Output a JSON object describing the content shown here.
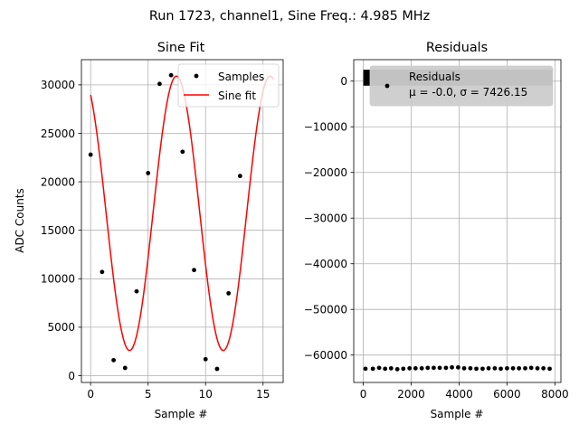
{
  "suptitle": "Run 1723, channel1, Sine Freq.: 4.985 MHz",
  "chart_data": [
    {
      "type": "scatter",
      "title": "Sine Fit",
      "xlabel": "Sample #",
      "ylabel": "ADC Counts",
      "xlim": [
        -0.8,
        16.75
      ],
      "ylim": [
        -700,
        32600
      ],
      "xticks": [
        0,
        5,
        10,
        15
      ],
      "yticks": [
        0,
        5000,
        10000,
        15000,
        20000,
        25000,
        30000
      ],
      "grid": true,
      "legend_position": "top-right",
      "series": [
        {
          "name": "Samples",
          "kind": "points",
          "color": "#000000",
          "x": [
            0,
            1,
            2,
            3,
            4,
            5,
            6,
            7,
            8,
            9,
            10,
            11,
            12,
            13
          ],
          "y": [
            22800,
            10700,
            1600,
            800,
            8700,
            20900,
            30100,
            31000,
            23100,
            10900,
            1700,
            700,
            8500,
            20600
          ]
        },
        {
          "name": "Sine fit",
          "kind": "line",
          "color": "#ff0000",
          "function": "offset + amplitude*sin(2*pi*x/period + phase)",
          "offset": 16750,
          "amplitude": 14150,
          "period": 8.15,
          "phase": 2.1,
          "x_range": [
            0,
            15.9
          ]
        }
      ]
    },
    {
      "type": "scatter",
      "title": "Residuals",
      "xlabel": "Sample #",
      "ylabel": "",
      "xlim": [
        -400,
        8250
      ],
      "ylim": [
        -66000,
        4700
      ],
      "xticks": [
        0,
        2000,
        4000,
        6000,
        8000
      ],
      "yticks": [
        0,
        -10000,
        -20000,
        -30000,
        -40000,
        -50000,
        -60000
      ],
      "grid": true,
      "legend_position": "top-right",
      "series": [
        {
          "name": "Residuals",
          "stats_label": "μ = -0.0, σ = 7426.15",
          "kind": "points",
          "color": "#000000",
          "band": {
            "x_start": 0,
            "x_end": 7900,
            "y_min": -1000,
            "y_max": 2500
          },
          "x": [
            90,
            400,
            660,
            910,
            1160,
            1420,
            1670,
            1930,
            2180,
            2440,
            2690,
            2940,
            3190,
            3450,
            3700,
            3960,
            4210,
            4470,
            4720,
            4980,
            5230,
            5490,
            5740,
            6000,
            6250,
            6500,
            6760,
            7010,
            7270,
            7520,
            7780
          ],
          "y": [
            -63000,
            -63000,
            -62800,
            -63000,
            -62900,
            -63100,
            -63000,
            -62900,
            -62900,
            -62900,
            -62800,
            -62800,
            -62800,
            -62800,
            -62700,
            -62700,
            -62900,
            -62900,
            -63000,
            -63000,
            -62900,
            -62900,
            -63000,
            -62900,
            -62900,
            -62900,
            -62900,
            -62800,
            -62900,
            -62900,
            -63000
          ]
        }
      ]
    }
  ]
}
